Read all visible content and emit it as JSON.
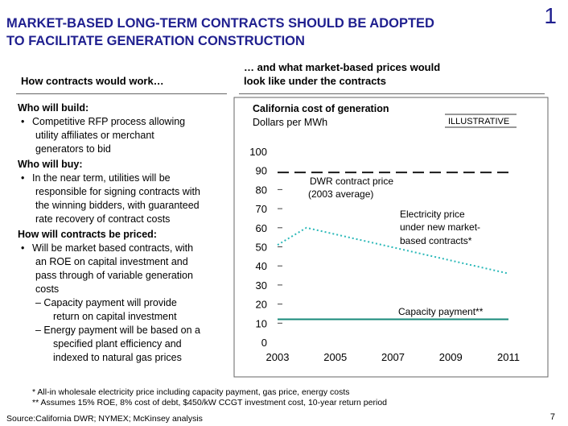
{
  "header": {
    "title_line1": "MARKET-BASED LONG-TERM CONTRACTS SHOULD BE ADOPTED",
    "title_line2": "TO FACILITATE GENERATION CONSTRUCTION",
    "slide_number": "1"
  },
  "left": {
    "heading": "How contracts would work…",
    "sections": {
      "build": {
        "question": "Who will build:",
        "bullet": [
          "Competitive RFP process allowing",
          "utility affiliates or merchant",
          "generators to bid"
        ]
      },
      "buy": {
        "question": "Who will buy:",
        "bullet": [
          "In the near term, utilities will be",
          "responsible for signing contracts with",
          "the winning bidders, with guaranteed",
          "rate recovery of contract costs"
        ]
      },
      "price": {
        "question": "How will contracts be priced:",
        "bullet": [
          "Will be market based contracts, with",
          "an ROE on capital investment and",
          "pass through of variable generation",
          "costs"
        ],
        "sub1": [
          "– Capacity payment will provide",
          "return on capital investment"
        ],
        "sub2": [
          "– Energy payment will be based on a",
          "specified plant efficiency and",
          "indexed to natural gas prices"
        ]
      }
    },
    "bullet_glyph": "•"
  },
  "right": {
    "heading_line1": "… and what market-based prices would",
    "heading_line2": "look like under the contracts"
  },
  "chart_data": {
    "type": "line",
    "title": "California cost of generation",
    "subtitle": "Dollars per MWh",
    "badge": "ILLUSTRATIVE",
    "xlim": [
      2003,
      2011
    ],
    "ylim": [
      0,
      100
    ],
    "x_ticks": [
      "2003",
      "2005",
      "2007",
      "2009",
      "2011"
    ],
    "x_tick_values": [
      2003,
      2005,
      2007,
      2009,
      2011
    ],
    "y_ticks": [
      "0",
      "10",
      "20",
      "30",
      "40",
      "50",
      "60",
      "70",
      "80",
      "90",
      "100"
    ],
    "y_tick_values": [
      0,
      10,
      20,
      30,
      40,
      50,
      60,
      70,
      80,
      90,
      100
    ],
    "series": [
      {
        "name": "DWR contract price (2003 average)",
        "style": "dashed",
        "x": [
          2003,
          2011
        ],
        "y": [
          89,
          89
        ]
      },
      {
        "name": "Electricity price under new market-based contracts*",
        "style": "dotted",
        "x": [
          2003,
          2004,
          2011
        ],
        "y": [
          51,
          60,
          36
        ]
      },
      {
        "name": "Capacity payment**",
        "style": "solid",
        "x": [
          2003,
          2011
        ],
        "y": [
          12,
          12
        ]
      }
    ],
    "annotations": {
      "dwr_line1": "DWR contract price",
      "dwr_line2": "(2003 average)",
      "elec_line1": "Electricity price",
      "elec_line2": "under new market-",
      "elec_line3": "based contracts*",
      "capacity": "Capacity payment**"
    },
    "colors": {
      "dashed": "#1a1a1a",
      "dotted": "#2ab8b8",
      "capacity": "#178a7a",
      "axis": "#444444",
      "frame": "#666666"
    }
  },
  "footnotes": {
    "note1": "* All-in wholesale electricity price including capacity payment, gas price, energy costs",
    "note2": "** Assumes 15% ROE, 8% cost of debt, $450/kW CCGT investment cost, 10-year return period"
  },
  "source": "Source:California DWR; NYMEX; McKinsey analysis",
  "page_number": "7"
}
